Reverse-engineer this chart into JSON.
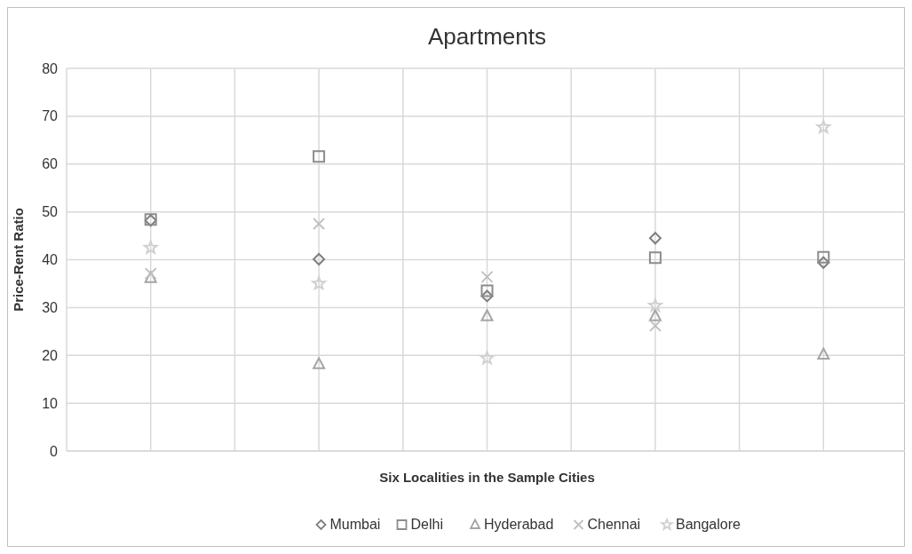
{
  "chart_data": {
    "type": "scatter",
    "title": "Apartments",
    "xlabel": "Six Localities in the Sample Cities",
    "ylabel": "Price-Rent Ratio",
    "categories": [
      null,
      null,
      null,
      null,
      null
    ],
    "ylim": [
      0,
      80
    ],
    "yticks": [
      0,
      10,
      20,
      30,
      40,
      50,
      60,
      70,
      80
    ],
    "tick_labels": "y",
    "grid": true,
    "legend": "bottom",
    "series": [
      {
        "name": "Mumbai",
        "color": "#7f7f7f",
        "marker": "diamond",
        "values": [
          48.2,
          40.1,
          32.4,
          44.5,
          39.4
        ]
      },
      {
        "name": "Delhi",
        "color": "#8c8c8c",
        "marker": "square",
        "values": [
          48.4,
          61.6,
          33.5,
          40.4,
          40.5
        ]
      },
      {
        "name": "Hyderabad",
        "color": "#a5a5a5",
        "marker": "triangle",
        "values": [
          36.2,
          18.2,
          28.2,
          28.2,
          20.2
        ]
      },
      {
        "name": "Chennai",
        "color": "#bfbfbf",
        "marker": "cross",
        "values": [
          37.1,
          47.5,
          36.4,
          26.2,
          null
        ]
      },
      {
        "name": "Bangalore",
        "color": "#d0d0d0",
        "marker": "star",
        "values": [
          42.5,
          35.0,
          19.4,
          30.4,
          67.7
        ]
      }
    ]
  }
}
